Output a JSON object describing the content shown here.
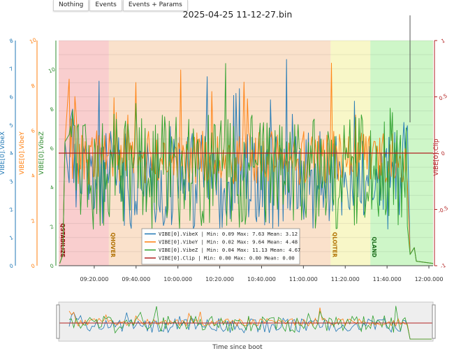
{
  "buttons": {
    "nothing": "Nothing",
    "events": "Events",
    "events_params": "Events + Params"
  },
  "title": "2025-04-25 11-12-27.bin",
  "bottom_title": "Time since boot",
  "colors": {
    "vibex": "#1f77b4",
    "vibey": "#ff7f0e",
    "vibez": "#2ca02c",
    "clip": "#b22222",
    "green_axis": "#2e8b2e"
  },
  "chart_data": {
    "type": "line",
    "x_ticks": [
      "09:20.000",
      "09:40.000",
      "10:00.000",
      "10:20.000",
      "10:40.000",
      "11:00.000",
      "11:20.000",
      "11:40.000",
      "12:00.000"
    ],
    "x_range": [
      "09:03.000",
      "12:02.000"
    ],
    "axes": {
      "vibex": {
        "label": "VIBE[0].VibeX",
        "range": [
          0,
          8
        ],
        "ticks": [
          "0",
          "1",
          "2",
          "3",
          "4",
          "5",
          "6",
          "7",
          "8"
        ]
      },
      "vibey": {
        "label": "VIBE[0].VibeY",
        "range": [
          0,
          10
        ],
        "ticks": [
          "0",
          "2",
          "4",
          "6",
          "8",
          "10"
        ]
      },
      "vibez": {
        "label": "VIBE[0].VibeZ",
        "range": [
          0,
          11.5
        ],
        "ticks": [
          "0",
          "2",
          "4",
          "6",
          "8",
          "10"
        ]
      },
      "clip": {
        "label": "VIBE[0].Clip",
        "range": [
          -1,
          1
        ],
        "ticks": [
          "-1",
          "-0.5",
          "0",
          "0.5",
          "1"
        ]
      }
    },
    "modes": [
      {
        "name": "QSTABILIZE",
        "start": "09:03.000",
        "end": "09:27.000",
        "color": "#f4a6a6"
      },
      {
        "name": "QHOVER",
        "start": "09:27.000",
        "end": "11:13.000",
        "color": "#f5c9a0"
      },
      {
        "name": "QLOITER",
        "start": "11:13.000",
        "end": "11:32.000",
        "color": "#f3f09a"
      },
      {
        "name": "QLAND",
        "start": "11:32.000",
        "end": "12:02.000",
        "color": "#a6ee9a"
      }
    ],
    "legend": [
      {
        "name": "VIBE[0].VibeX",
        "min": "0.09",
        "max": "7.63",
        "mean": "3.12",
        "key": "vibex"
      },
      {
        "name": "VIBE[0].VibeY",
        "min": "0.02",
        "max": "9.64",
        "mean": "4.48",
        "key": "vibey"
      },
      {
        "name": "VIBE[0].VibeZ",
        "min": "0.04",
        "max": "11.13",
        "mean": "4.67",
        "key": "vibez"
      },
      {
        "name": "VIBE[0].Clip",
        "min": "0.00",
        "max": "0.00",
        "mean": "0.00",
        "key": "clip"
      }
    ],
    "series_summary": {
      "clip_value": 0
    }
  }
}
